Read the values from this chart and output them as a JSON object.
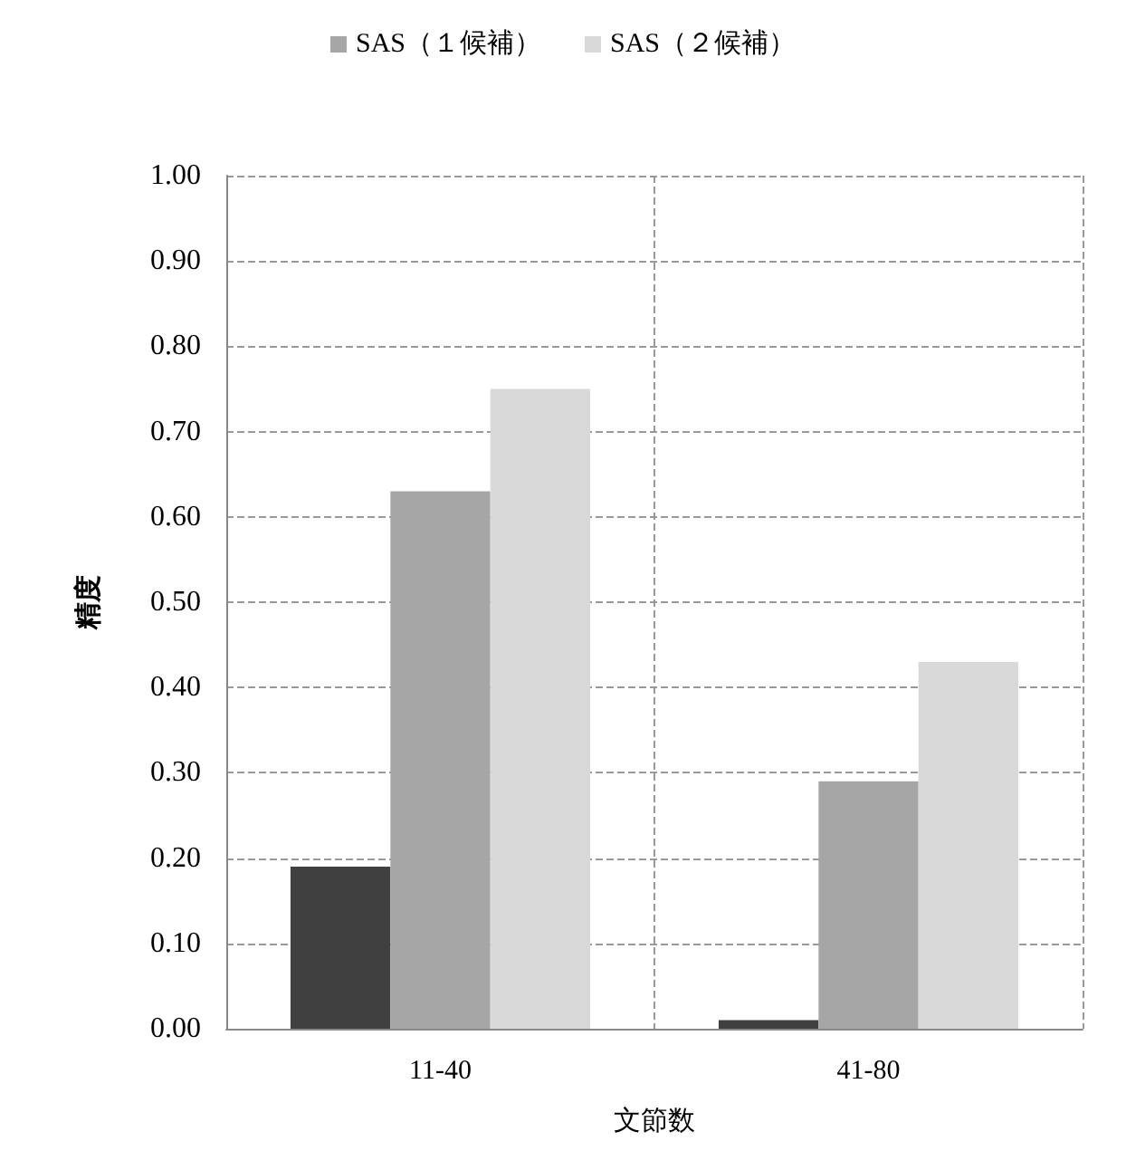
{
  "chart_data": {
    "type": "bar",
    "xlabel": "文節数",
    "ylabel": "精度",
    "categories": [
      "11-40",
      "41-80"
    ],
    "series": [
      {
        "color": "#404040",
        "values": [
          0.19,
          0.01
        ]
      },
      {
        "name": "SAS（１候補）",
        "color": "#a6a6a6",
        "values": [
          0.63,
          0.29
        ]
      },
      {
        "name": "SAS（２候補）",
        "color": "#d9d9d9",
        "values": [
          0.75,
          0.43
        ]
      }
    ],
    "ylim": [
      0,
      1
    ],
    "yticks": [
      {
        "value": 0,
        "label": "0.00"
      },
      {
        "value": 0.1,
        "label": "0.10"
      },
      {
        "value": 0.2,
        "label": "0.20"
      },
      {
        "value": 0.3,
        "label": "0.30"
      },
      {
        "value": 0.4,
        "label": "0.40"
      },
      {
        "value": 0.5,
        "label": "0.50"
      },
      {
        "value": 0.6,
        "label": "0.60"
      },
      {
        "value": 0.7,
        "label": "0.70"
      },
      {
        "value": 0.8,
        "label": "0.80"
      },
      {
        "value": 0.9,
        "label": "0.90"
      },
      {
        "value": 1,
        "label": "1.00"
      }
    ],
    "grid": true,
    "legend": "top"
  }
}
